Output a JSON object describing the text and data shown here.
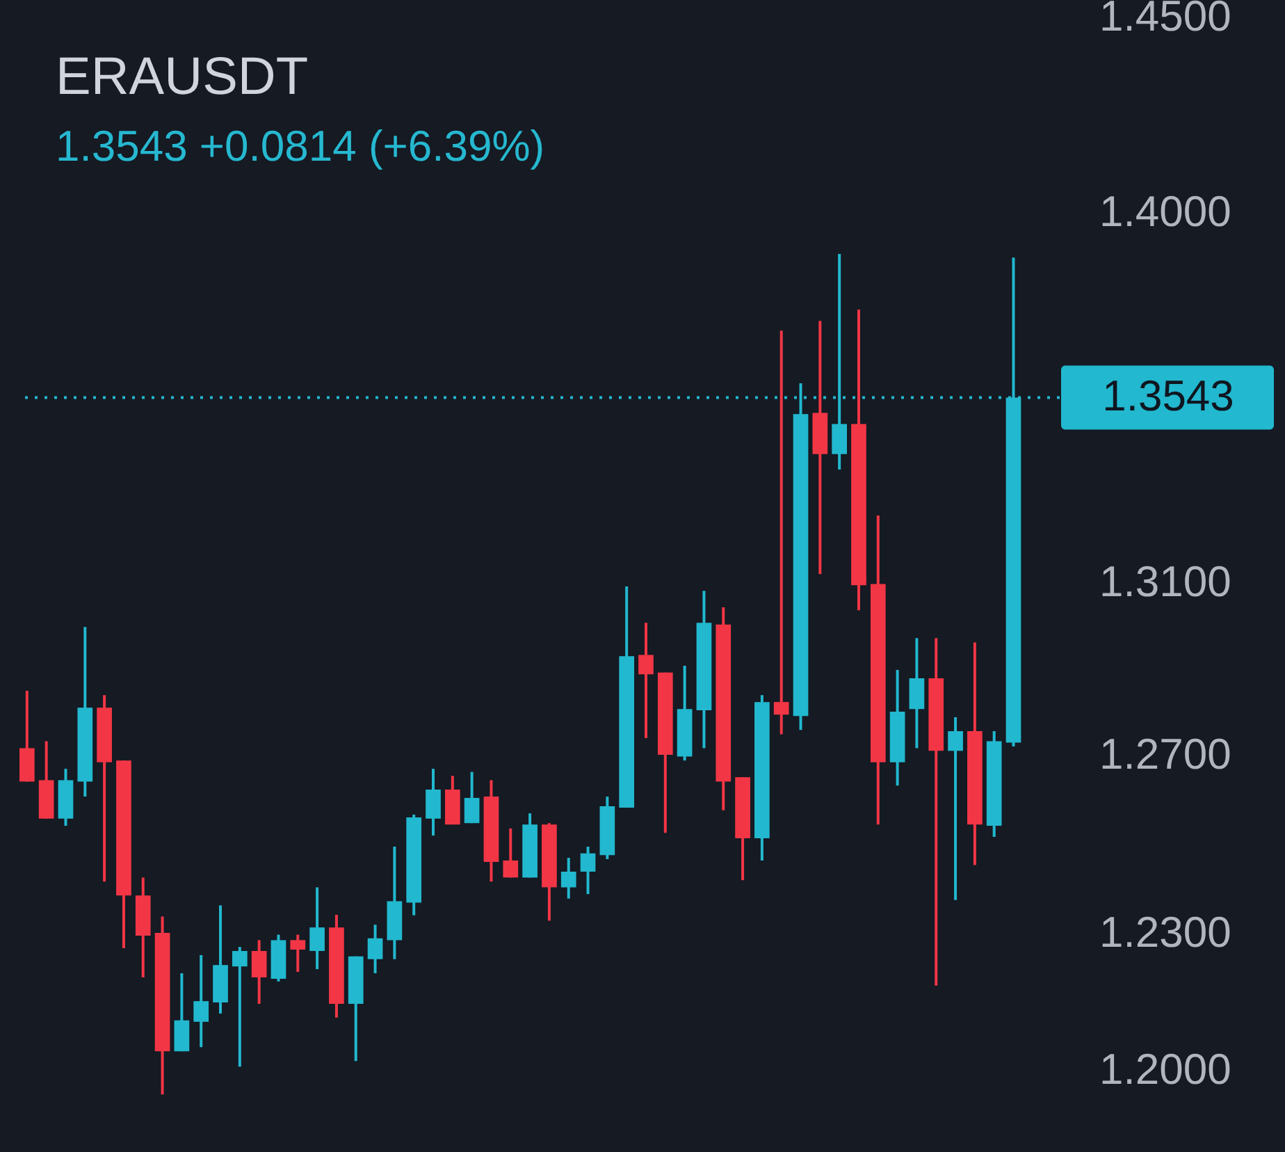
{
  "chart_data": {
    "type": "candlestick",
    "title": "ERAUSDT",
    "subtitle": "1.3543  +0.0814 (+6.39%)",
    "categories": [
      null,
      null,
      null,
      null,
      null,
      null,
      null,
      null,
      null,
      null,
      null,
      null,
      null,
      null,
      null,
      null,
      null,
      null,
      null,
      null,
      null,
      null,
      null,
      null,
      null,
      null,
      null,
      null,
      null,
      null,
      null,
      null,
      null,
      null,
      null,
      null,
      null,
      null,
      null,
      null,
      null,
      null,
      null,
      null,
      null,
      null,
      null,
      null,
      null,
      null,
      null,
      null
    ],
    "ohlc": [
      [
        1.2716,
        1.2848,
        1.264,
        1.264
      ],
      [
        1.2643,
        1.2732,
        1.2556,
        1.2556
      ],
      [
        1.2556,
        1.2669,
        1.254,
        1.2643
      ],
      [
        1.264,
        1.2996,
        1.2606,
        1.2809
      ],
      [
        1.2809,
        1.2838,
        1.2415,
        1.2684
      ],
      [
        1.2688,
        1.2688,
        1.2267,
        1.2384
      ],
      [
        1.2384,
        1.2424,
        1.2203,
        1.2295
      ],
      [
        1.2301,
        1.2337,
        1.1949,
        1.2042
      ],
      [
        1.2042,
        1.2212,
        1.2042,
        1.2109
      ],
      [
        1.2106,
        1.2252,
        1.2051,
        1.2151
      ],
      [
        1.2148,
        1.2362,
        1.2124,
        1.223
      ],
      [
        1.2227,
        1.227,
        1.2009,
        1.2261
      ],
      [
        1.2261,
        1.2285,
        1.2145,
        1.2203
      ],
      [
        1.22,
        1.2297,
        1.2194,
        1.2285
      ],
      [
        1.2285,
        1.2297,
        1.2215,
        1.2264
      ],
      [
        1.2261,
        1.2402,
        1.2221,
        1.2313
      ],
      [
        1.2313,
        1.2341,
        1.2115,
        1.2145
      ],
      [
        1.2145,
        1.2249,
        1.2021,
        1.2249
      ],
      [
        1.2243,
        1.2319,
        1.2212,
        1.2289
      ],
      [
        1.2285,
        1.2493,
        1.2243,
        1.2371
      ],
      [
        1.2368,
        1.2565,
        1.234,
        1.2559
      ],
      [
        1.2556,
        1.2669,
        1.2518,
        1.2622
      ],
      [
        1.2622,
        1.2653,
        1.2543,
        1.2543
      ],
      [
        1.2546,
        1.2662,
        1.2546,
        1.2603
      ],
      [
        1.2606,
        1.2643,
        1.2415,
        1.2459
      ],
      [
        1.2462,
        1.2534,
        1.2424,
        1.2424
      ],
      [
        1.2424,
        1.2568,
        1.2424,
        1.2543
      ],
      [
        1.2543,
        1.2546,
        1.2328,
        1.2402
      ],
      [
        1.2402,
        1.2468,
        1.2377,
        1.2437
      ],
      [
        1.2437,
        1.2493,
        1.2387,
        1.2478
      ],
      [
        1.2474,
        1.2606,
        1.2465,
        1.2584
      ],
      [
        1.2581,
        1.3091,
        1.2581,
        1.2928
      ],
      [
        1.2931,
        1.3006,
        1.2739,
        1.2886
      ],
      [
        1.289,
        1.289,
        1.2524,
        1.2701
      ],
      [
        1.2697,
        1.2906,
        1.2688,
        1.2806
      ],
      [
        1.2803,
        1.3081,
        1.2716,
        1.3006
      ],
      [
        1.3002,
        1.3042,
        1.2575,
        1.264
      ],
      [
        1.265,
        1.265,
        1.2418,
        1.2512
      ],
      [
        1.2512,
        1.2838,
        1.2462,
        1.2822
      ],
      [
        1.2822,
        1.3707,
        1.2748,
        1.2793
      ],
      [
        1.279,
        1.3578,
        1.2758,
        1.3503
      ],
      [
        1.3506,
        1.3731,
        1.312,
        1.3406
      ],
      [
        1.3406,
        1.3897,
        1.3369,
        1.3479
      ],
      [
        1.3479,
        1.3759,
        1.3035,
        1.3094
      ],
      [
        1.3097,
        1.3259,
        1.2543,
        1.2684
      ],
      [
        1.2684,
        1.2896,
        1.2631,
        1.28
      ],
      [
        1.2806,
        1.297,
        1.2716,
        1.2877
      ],
      [
        1.2877,
        1.297,
        1.2185,
        1.271
      ],
      [
        1.271,
        1.2787,
        1.2374,
        1.2755
      ],
      [
        1.2755,
        1.296,
        1.2452,
        1.2543
      ],
      [
        1.254,
        1.2755,
        1.2515,
        1.2732
      ],
      [
        1.2729,
        1.3888,
        1.272,
        1.3543
      ]
    ],
    "colors": [
      "#f23645",
      "#f23645",
      "#22b8cf",
      "#22b8cf",
      "#f23645",
      "#f23645",
      "#f23645",
      "#f23645",
      "#22b8cf",
      "#22b8cf",
      "#22b8cf",
      "#22b8cf",
      "#f23645",
      "#22b8cf",
      "#f23645",
      "#22b8cf",
      "#f23645",
      "#22b8cf",
      "#22b8cf",
      "#22b8cf",
      "#22b8cf",
      "#22b8cf",
      "#f23645",
      "#22b8cf",
      "#f23645",
      "#f23645",
      "#22b8cf",
      "#f23645",
      "#22b8cf",
      "#22b8cf",
      "#22b8cf",
      "#22b8cf",
      "#f23645",
      "#f23645",
      "#22b8cf",
      "#22b8cf",
      "#f23645",
      "#f23645",
      "#22b8cf",
      "#f23645",
      "#22b8cf",
      "#f23645",
      "#22b8cf",
      "#f23645",
      "#f23645",
      "#22b8cf",
      "#22b8cf",
      "#f23645",
      "#22b8cf",
      "#f23645",
      "#22b8cf",
      "#22b8cf"
    ],
    "log": "y",
    "ylim": [
      1.1826,
      1.4546
    ],
    "yticks": [
      {
        "value": 1.2,
        "label": "1.2000"
      },
      {
        "value": 1.23,
        "label": "1.2300"
      },
      {
        "value": 1.27,
        "label": "1.2700"
      },
      {
        "value": 1.31,
        "label": "1.3100"
      },
      {
        "value": 1.4,
        "label": "1.4000"
      },
      {
        "value": 1.45,
        "label": "1.4500"
      }
    ],
    "tick_labels": "y",
    "ref_lines": [
      {
        "axis": "y",
        "value": 1.3543,
        "label": "1.3543",
        "color": "#22b8cf",
        "line_style": "dotted"
      }
    ]
  }
}
